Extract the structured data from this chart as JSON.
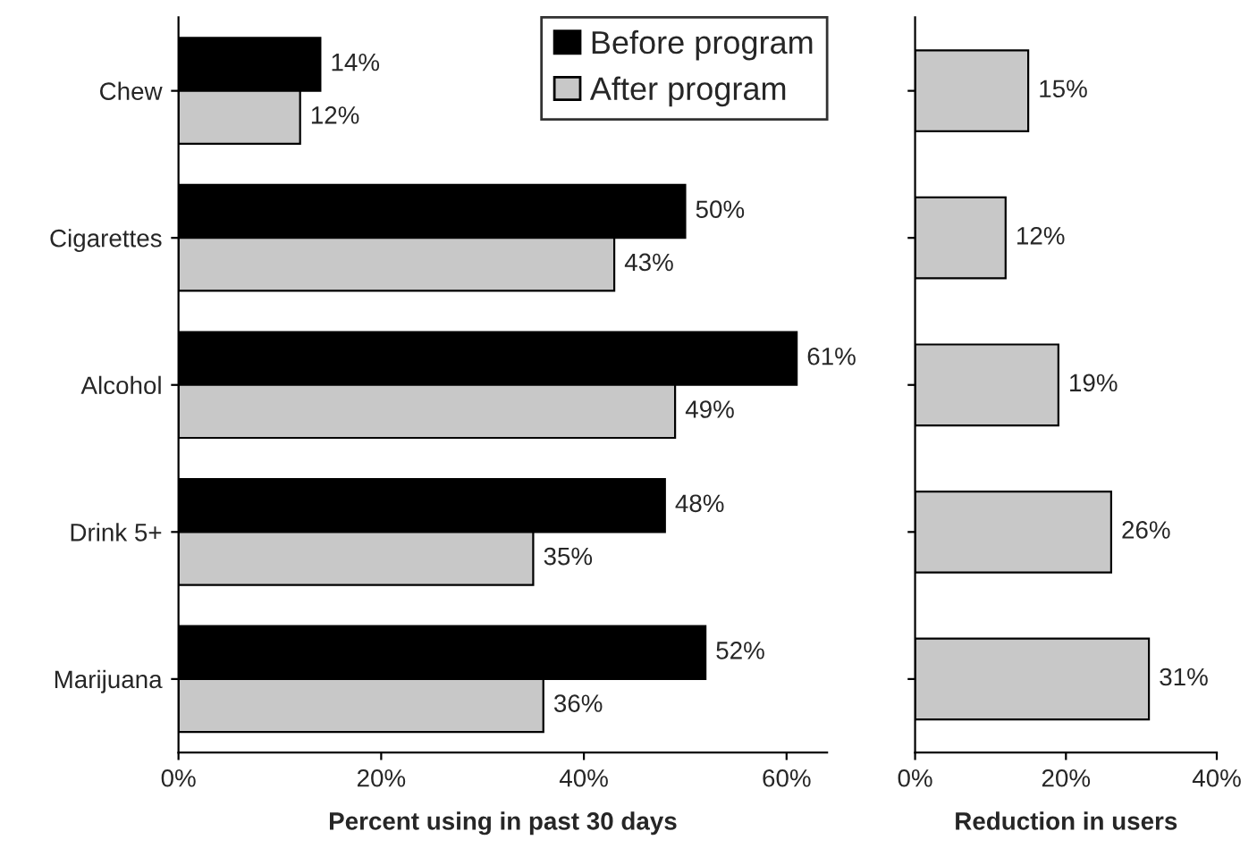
{
  "chart_data": [
    {
      "type": "bar",
      "orientation": "horizontal",
      "categories": [
        "Chew",
        "Cigarettes",
        "Alcohol",
        "Drink 5+",
        "Marijuana"
      ],
      "series": [
        {
          "name": "Before program",
          "color": "#000000",
          "values": [
            14,
            50,
            61,
            48,
            52
          ],
          "value_labels": [
            "14%",
            "50%",
            "61%",
            "48%",
            "52%"
          ]
        },
        {
          "name": "After program",
          "color": "#c8c8c8",
          "values": [
            12,
            43,
            49,
            35,
            36
          ],
          "value_labels": [
            "12%",
            "43%",
            "49%",
            "35%",
            "36%"
          ]
        }
      ],
      "xlim": [
        0,
        64
      ],
      "xticks": [
        {
          "value": 0,
          "label": "0%"
        },
        {
          "value": 20,
          "label": "20%"
        },
        {
          "value": 40,
          "label": "40%"
        },
        {
          "value": 60,
          "label": "60%"
        }
      ],
      "xlabel": "Percent using in past 30 days",
      "legend": "top right",
      "grid": false
    },
    {
      "type": "bar",
      "orientation": "horizontal",
      "categories": [
        null,
        null,
        null,
        null,
        null
      ],
      "series": [
        {
          "color": "#c8c8c8",
          "values": [
            15,
            12,
            19,
            26,
            31
          ],
          "value_labels": [
            "15%",
            "12%",
            "19%",
            "26%",
            "31%"
          ]
        }
      ],
      "xlim": [
        0,
        40
      ],
      "xticks": [
        {
          "value": 0,
          "label": "0%"
        },
        {
          "value": 20,
          "label": "20%"
        },
        {
          "value": 40,
          "label": "40%"
        }
      ],
      "xlabel": "Reduction in users",
      "tick_labels": "x",
      "legend": false,
      "grid": false
    }
  ]
}
